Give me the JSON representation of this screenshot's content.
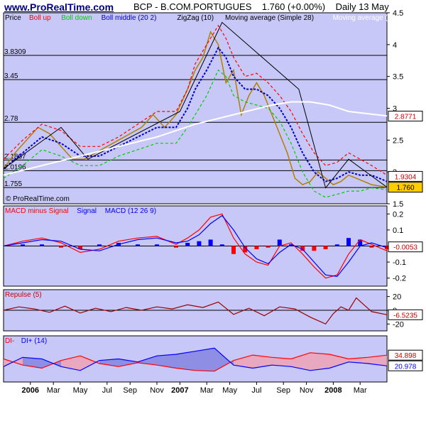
{
  "header": {
    "site": "www.ProRealTime.com",
    "title": "BCP - B.COM.PORTUGUES",
    "quote": "1.760 (+0.00%)",
    "period": "Daily  13 May"
  },
  "colors": {
    "panel_bg": "#c8c8f8",
    "boll_up": "#ff0000",
    "boll_down": "#00cc00",
    "boll_middle": "#0000cc",
    "zigzag": "#000000",
    "ma28": "#ffffff",
    "macd_pos": "#0000ff",
    "macd_neg": "#ff0000",
    "macd_line": "#ff0000",
    "signal_line": "#0000ff",
    "di_minus": "#ff0000",
    "di_plus": "#0000ff"
  },
  "x_axis": {
    "labels": [
      "2006",
      "Mar",
      "May",
      "Jul",
      "Sep",
      "Nov",
      "2007",
      "Mar",
      "May",
      "Jul",
      "Sep",
      "Nov",
      "2008",
      "Mar"
    ]
  },
  "chart_data": [
    {
      "type": "line",
      "panel": "price",
      "legend": [
        "Price",
        "Boll up",
        "Boll down",
        "Boll middle (20 2)",
        "ZigZag (10)",
        "Moving average (Simple 28)",
        "Moving average (Simp"
      ],
      "ylim": [
        1.5,
        4.5
      ],
      "yticks": [
        1.5,
        2,
        2.5,
        3,
        3.5,
        4,
        4.5
      ],
      "levels": [
        {
          "label": "3.8309",
          "value": 3.8309
        },
        {
          "label": "3.45",
          "value": 3.45
        },
        {
          "label": "2.78",
          "value": 2.78
        },
        {
          "label": "2.1867",
          "value": 2.1867
        },
        {
          "label": "2.0196",
          "value": 2.0196
        },
        {
          "label": "1.755",
          "value": 1.755
        }
      ],
      "boxes": [
        {
          "label": "2.8771",
          "value": 2.8771,
          "color": "#ffffff"
        },
        {
          "label": "1.9304",
          "value": 1.9304,
          "color": "#ffffff"
        },
        {
          "label": "1.760",
          "value": 1.76,
          "color": "#ffcc00"
        }
      ],
      "watermark": "© ProRealTime.com",
      "series": [
        {
          "name": "Price",
          "key": "price",
          "x": [
            0,
            0.03,
            0.06,
            0.09,
            0.12,
            0.15,
            0.18,
            0.21,
            0.24,
            0.27,
            0.3,
            0.33,
            0.36,
            0.39,
            0.42,
            0.45,
            0.48,
            0.5,
            0.52,
            0.54,
            0.56,
            0.58,
            0.6,
            0.62,
            0.64,
            0.66,
            0.68,
            0.7,
            0.72,
            0.74,
            0.76,
            0.78,
            0.8,
            0.82,
            0.84,
            0.86,
            0.88,
            0.9,
            0.92,
            0.94,
            0.96,
            0.98,
            1.0
          ],
          "y": [
            2.05,
            2.3,
            2.5,
            2.7,
            2.6,
            2.4,
            2.2,
            2.2,
            2.3,
            2.4,
            2.5,
            2.6,
            2.7,
            2.9,
            2.7,
            2.9,
            3.3,
            3.6,
            3.8,
            4.2,
            4.0,
            3.4,
            3.6,
            2.9,
            3.2,
            3.4,
            3.2,
            2.9,
            2.6,
            2.3,
            1.9,
            1.8,
            1.85,
            2.0,
            1.9,
            1.8,
            1.85,
            1.95,
            1.9,
            1.85,
            1.8,
            1.78,
            1.76
          ]
        },
        {
          "name": "Boll middle (20 2)",
          "key": "bollm",
          "x": [
            0,
            0.05,
            0.1,
            0.15,
            0.2,
            0.25,
            0.3,
            0.35,
            0.4,
            0.45,
            0.48,
            0.5,
            0.53,
            0.56,
            0.58,
            0.6,
            0.63,
            0.66,
            0.69,
            0.72,
            0.75,
            0.78,
            0.81,
            0.84,
            0.87,
            0.9,
            0.93,
            0.96,
            1.0
          ],
          "y": [
            2.05,
            2.3,
            2.55,
            2.45,
            2.25,
            2.25,
            2.4,
            2.55,
            2.7,
            2.7,
            3.0,
            3.3,
            3.6,
            3.95,
            3.8,
            3.5,
            3.3,
            3.3,
            3.2,
            3.0,
            2.7,
            2.3,
            2.0,
            1.85,
            1.9,
            2.0,
            1.95,
            1.95,
            1.85
          ]
        },
        {
          "name": "Boll up",
          "key": "bollu",
          "x": [
            0,
            0.05,
            0.1,
            0.15,
            0.2,
            0.25,
            0.3,
            0.35,
            0.4,
            0.45,
            0.48,
            0.5,
            0.53,
            0.56,
            0.58,
            0.6,
            0.63,
            0.66,
            0.69,
            0.72,
            0.75,
            0.78,
            0.81,
            0.84,
            0.87,
            0.9,
            0.93,
            0.96,
            1.0
          ],
          "y": [
            2.2,
            2.5,
            2.75,
            2.65,
            2.4,
            2.4,
            2.55,
            2.75,
            2.95,
            2.95,
            3.3,
            3.7,
            4.0,
            4.3,
            4.1,
            3.8,
            3.5,
            3.55,
            3.4,
            3.2,
            2.95,
            2.6,
            2.3,
            2.1,
            2.15,
            2.3,
            2.2,
            2.1,
            1.95
          ]
        },
        {
          "name": "Boll down",
          "key": "bolld",
          "x": [
            0,
            0.05,
            0.1,
            0.15,
            0.2,
            0.25,
            0.3,
            0.35,
            0.4,
            0.45,
            0.48,
            0.5,
            0.53,
            0.56,
            0.58,
            0.6,
            0.63,
            0.66,
            0.69,
            0.72,
            0.75,
            0.78,
            0.81,
            0.84,
            0.87,
            0.9,
            0.93,
            0.96,
            1.0
          ],
          "y": [
            1.9,
            2.1,
            2.35,
            2.25,
            2.1,
            2.1,
            2.25,
            2.35,
            2.45,
            2.45,
            2.7,
            2.9,
            3.2,
            3.6,
            3.5,
            3.2,
            3.1,
            3.05,
            3.0,
            2.8,
            2.45,
            2.0,
            1.7,
            1.6,
            1.65,
            1.7,
            1.7,
            1.75,
            1.72
          ]
        },
        {
          "name": "ZigZag (10)",
          "key": "zigzag",
          "x": [
            0,
            0.15,
            0.22,
            0.46,
            0.57,
            0.77,
            0.84,
            0.9,
            1.0
          ],
          "y": [
            2.05,
            2.7,
            2.2,
            2.95,
            4.35,
            3.3,
            1.75,
            2.2,
            1.76
          ]
        },
        {
          "name": "Moving average (Simple 28)",
          "key": "ma",
          "x": [
            0,
            0.1,
            0.2,
            0.3,
            0.4,
            0.5,
            0.6,
            0.7,
            0.75,
            0.8,
            0.85,
            0.9,
            1.0
          ],
          "y": [
            1.95,
            2.1,
            2.25,
            2.4,
            2.55,
            2.75,
            2.9,
            3.05,
            3.1,
            3.1,
            3.05,
            2.95,
            2.88
          ]
        }
      ]
    },
    {
      "type": "line",
      "panel": "macd",
      "legend": [
        "MACD minus Signal",
        "Signal",
        "MACD (12 26 9)"
      ],
      "ylim": [
        -0.25,
        0.25
      ],
      "yticks": [
        0.2,
        0.1,
        0,
        -0.1,
        -0.2
      ],
      "ytick_labels": [
        "0.2",
        "0.1",
        "0",
        "-0.1",
        "-0.2"
      ],
      "boxes": [
        {
          "label": "-0.0053",
          "value": -0.0053,
          "color": "#ffffff"
        }
      ],
      "series": [
        {
          "name": "MACD (12 26 9)",
          "key": "macd",
          "x": [
            0,
            0.05,
            0.1,
            0.15,
            0.2,
            0.25,
            0.3,
            0.35,
            0.4,
            0.45,
            0.48,
            0.51,
            0.54,
            0.57,
            0.6,
            0.63,
            0.66,
            0.69,
            0.72,
            0.75,
            0.78,
            0.81,
            0.84,
            0.87,
            0.9,
            0.93,
            0.96,
            1.0
          ],
          "y": [
            0.0,
            0.03,
            0.05,
            0.02,
            -0.04,
            -0.02,
            0.03,
            0.05,
            0.06,
            0.01,
            0.05,
            0.1,
            0.18,
            0.2,
            0.05,
            -0.05,
            -0.1,
            -0.12,
            0.0,
            0.02,
            -0.05,
            -0.13,
            -0.2,
            -0.18,
            -0.05,
            0.04,
            0.01,
            -0.03
          ]
        },
        {
          "name": "Signal",
          "key": "signal",
          "x": [
            0,
            0.05,
            0.1,
            0.15,
            0.2,
            0.25,
            0.3,
            0.35,
            0.4,
            0.45,
            0.48,
            0.51,
            0.54,
            0.57,
            0.6,
            0.63,
            0.66,
            0.69,
            0.72,
            0.75,
            0.78,
            0.81,
            0.84,
            0.87,
            0.9,
            0.93,
            0.96,
            1.0
          ],
          "y": [
            0.0,
            0.02,
            0.04,
            0.03,
            -0.02,
            -0.03,
            0.01,
            0.04,
            0.05,
            0.02,
            0.03,
            0.07,
            0.14,
            0.19,
            0.1,
            -0.01,
            -0.08,
            -0.11,
            -0.04,
            0.01,
            -0.02,
            -0.1,
            -0.18,
            -0.19,
            -0.1,
            0.0,
            0.02,
            -0.01
          ]
        }
      ]
    },
    {
      "type": "line",
      "panel": "repulse",
      "legend": [
        "Repulse (5)"
      ],
      "ylim": [
        -30,
        30
      ],
      "yticks": [
        20,
        0,
        -20
      ],
      "ytick_labels": [
        "20",
        "0",
        "-20"
      ],
      "boxes": [
        {
          "label": "-6.5235",
          "value": -6.5235,
          "color": "#ffffff"
        }
      ],
      "series": [
        {
          "name": "Repulse (5)",
          "key": "repulse",
          "x": [
            0,
            0.04,
            0.08,
            0.12,
            0.16,
            0.2,
            0.24,
            0.28,
            0.32,
            0.36,
            0.4,
            0.44,
            0.48,
            0.52,
            0.56,
            0.6,
            0.64,
            0.68,
            0.72,
            0.76,
            0.8,
            0.84,
            0.86,
            0.88,
            0.9,
            0.92,
            0.94,
            0.96,
            1.0
          ],
          "y": [
            0,
            5,
            2,
            -3,
            6,
            -4,
            3,
            -2,
            4,
            0,
            5,
            2,
            8,
            4,
            12,
            -6,
            3,
            -8,
            5,
            2,
            -10,
            -20,
            -5,
            5,
            0,
            18,
            8,
            -2,
            -6.5
          ]
        }
      ]
    },
    {
      "type": "area",
      "panel": "dmi",
      "legend": [
        "DI-",
        "DI+ (14)"
      ],
      "ylim": [
        0,
        60
      ],
      "yticks": [],
      "boxes": [
        {
          "label": "34.898",
          "value": 34.898,
          "color": "#ffffff"
        },
        {
          "label": "20.978",
          "value": 20.978,
          "color": "#ffffff"
        }
      ],
      "series": [
        {
          "name": "DI-",
          "key": "diminus",
          "x": [
            0,
            0.05,
            0.1,
            0.15,
            0.2,
            0.25,
            0.3,
            0.35,
            0.4,
            0.45,
            0.5,
            0.55,
            0.6,
            0.65,
            0.7,
            0.75,
            0.8,
            0.85,
            0.9,
            0.95,
            1.0
          ],
          "y": [
            30,
            22,
            18,
            28,
            34,
            24,
            20,
            25,
            22,
            18,
            15,
            14,
            28,
            35,
            32,
            30,
            38,
            36,
            30,
            32,
            34.9
          ]
        },
        {
          "name": "DI+",
          "key": "diplus",
          "x": [
            0,
            0.05,
            0.1,
            0.15,
            0.2,
            0.25,
            0.3,
            0.35,
            0.4,
            0.45,
            0.5,
            0.55,
            0.6,
            0.65,
            0.7,
            0.75,
            0.8,
            0.85,
            0.9,
            0.95,
            1.0
          ],
          "y": [
            20,
            32,
            30,
            20,
            15,
            28,
            30,
            26,
            34,
            36,
            40,
            44,
            22,
            18,
            22,
            20,
            15,
            18,
            26,
            24,
            21.0
          ]
        }
      ]
    }
  ]
}
